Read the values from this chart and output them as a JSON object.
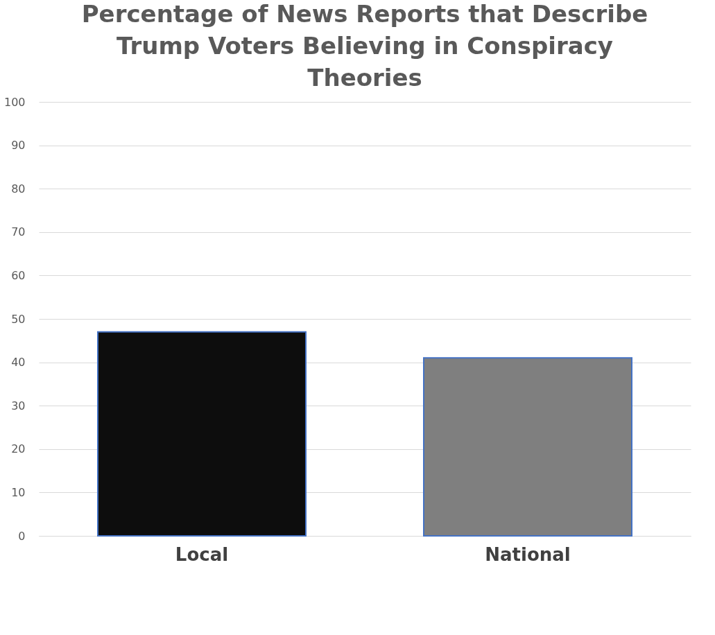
{
  "chart_data": {
    "type": "bar",
    "title": "Percentage of News Reports that Describe Trump Voters Believing in Conspiracy Theories",
    "categories": [
      "Local",
      "National"
    ],
    "colors": [
      "#0d0d0d",
      "#7f7f7f"
    ],
    "values": [
      47,
      41
    ],
    "ylim": [
      0,
      100
    ],
    "yticks": [
      0,
      10,
      20,
      30,
      40,
      50,
      60,
      70,
      80,
      90,
      100
    ],
    "grid": "y"
  }
}
